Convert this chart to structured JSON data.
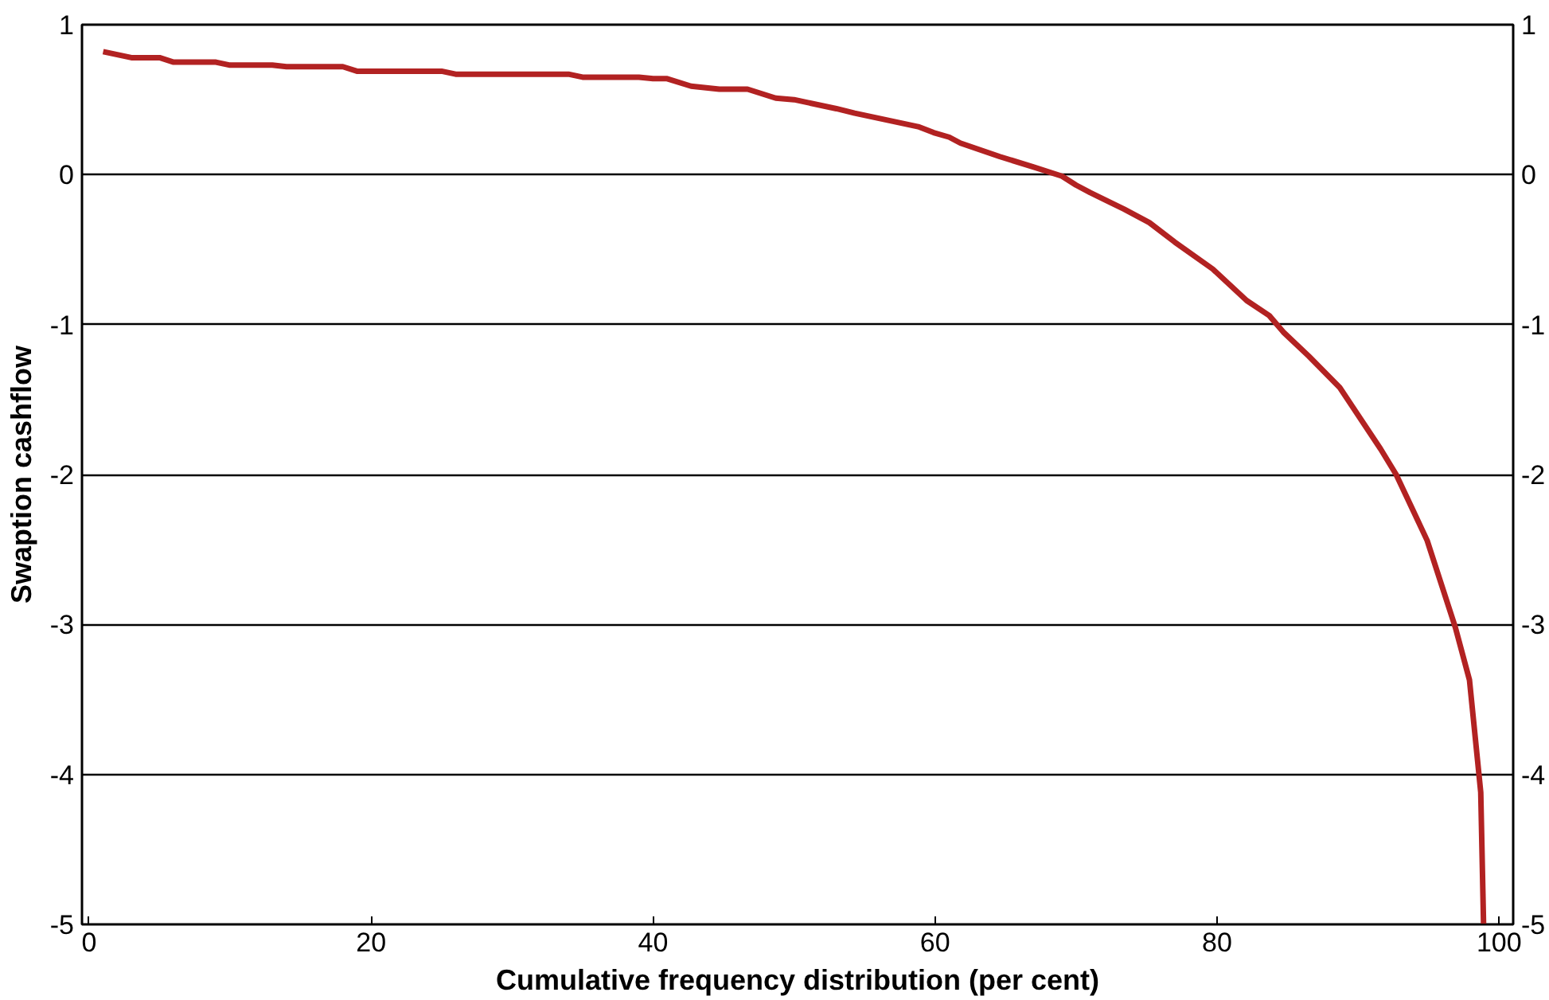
{
  "chart_data": {
    "type": "line",
    "xlabel": "Cumulative frequency distribution (per cent)",
    "ylabel": "Swaption cashflow",
    "x": [
      1,
      3,
      5,
      6,
      9,
      10,
      13,
      14,
      18,
      19,
      25,
      26,
      34,
      35,
      39,
      40,
      41,
      42.7,
      44.7,
      46.7,
      48.7,
      50,
      53,
      54.3,
      58.8,
      59.9,
      61,
      61.8,
      64.6,
      67,
      69,
      70,
      71,
      73.4,
      75.2,
      77,
      79.7,
      82.1,
      83.7,
      84.7,
      86.5,
      88.7,
      91.6,
      92.7,
      94.9,
      96.9,
      97.9,
      98.7,
      98.9
    ],
    "series": [
      {
        "color": "#b22222",
        "values": [
          0.82,
          0.78,
          0.78,
          0.75,
          0.75,
          0.73,
          0.73,
          0.72,
          0.72,
          0.69,
          0.69,
          0.67,
          0.67,
          0.65,
          0.65,
          0.64,
          0.64,
          0.59,
          0.57,
          0.57,
          0.51,
          0.5,
          0.44,
          0.41,
          0.32,
          0.28,
          0.25,
          0.21,
          0.12,
          0.05,
          -0.01,
          -0.07,
          -0.12,
          -0.23,
          -0.32,
          -0.45,
          -0.63,
          -0.84,
          -0.94,
          -1.05,
          -1.21,
          -1.42,
          -1.83,
          -2.0,
          -2.44,
          -3.02,
          -3.37,
          -4.12,
          -5
        ]
      }
    ],
    "xlim": [
      -0.5,
      101
    ],
    "xticks": [
      0,
      20,
      40,
      60,
      80,
      100
    ],
    "ylim": [
      -5,
      1
    ],
    "yticks": [
      {
        "value": -5,
        "label": "-5"
      },
      {
        "value": -4,
        "label": "-4"
      },
      {
        "value": -3,
        "label": "-3"
      },
      {
        "value": -2,
        "label": "-2"
      },
      {
        "value": -1,
        "label": "-1"
      },
      0,
      1
    ],
    "y2lim": [
      -5,
      1
    ],
    "y2ticks": [
      {
        "value": -5,
        "label": "-5"
      },
      {
        "value": -4,
        "label": "-4"
      },
      {
        "value": -3,
        "label": "-3"
      },
      {
        "value": -2,
        "label": "-2"
      },
      {
        "value": -1,
        "label": "-1"
      },
      0,
      1
    ],
    "grid": "y",
    "marker": "none",
    "line_style": "solid"
  }
}
